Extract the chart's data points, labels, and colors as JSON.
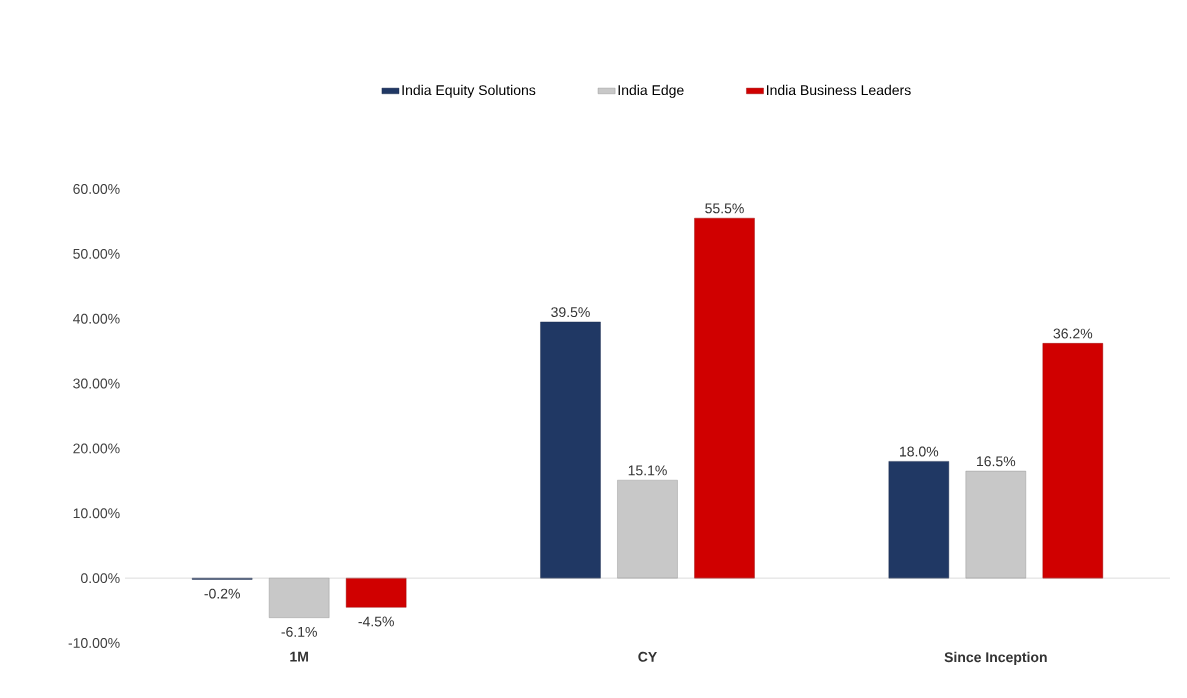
{
  "chart_data": {
    "type": "bar",
    "categories": [
      "1M",
      "CY",
      "Since Inception"
    ],
    "series": [
      {
        "name": "India Equity Solutions",
        "color": "#203864",
        "values": [
          -0.2,
          39.5,
          18.0
        ],
        "value_labels": [
          "-0.2%",
          "39.5%",
          "18.0%"
        ]
      },
      {
        "name": "India Edge",
        "color": "#c8c8c8",
        "values": [
          -6.1,
          15.1,
          16.5
        ],
        "value_labels": [
          "-6.1%",
          "15.1%",
          "16.5%"
        ]
      },
      {
        "name": "India Business Leaders",
        "color": "#d00000",
        "values": [
          -4.5,
          55.5,
          36.2
        ],
        "value_labels": [
          "-4.5%",
          "55.5%",
          "36.2%"
        ]
      }
    ],
    "ylim": [
      -10,
      60
    ],
    "yticks": [
      {
        "value": -10,
        "label": "-10.00%"
      },
      {
        "value": 0,
        "label": "0.00%"
      },
      {
        "value": 10,
        "label": "10.00%"
      },
      {
        "value": 20,
        "label": "20.00%"
      },
      {
        "value": 30,
        "label": "30.00%"
      },
      {
        "value": 40,
        "label": "40.00%"
      },
      {
        "value": 50,
        "label": "50.00%"
      },
      {
        "value": 60,
        "label": "60.00%"
      }
    ],
    "legend": "top"
  }
}
